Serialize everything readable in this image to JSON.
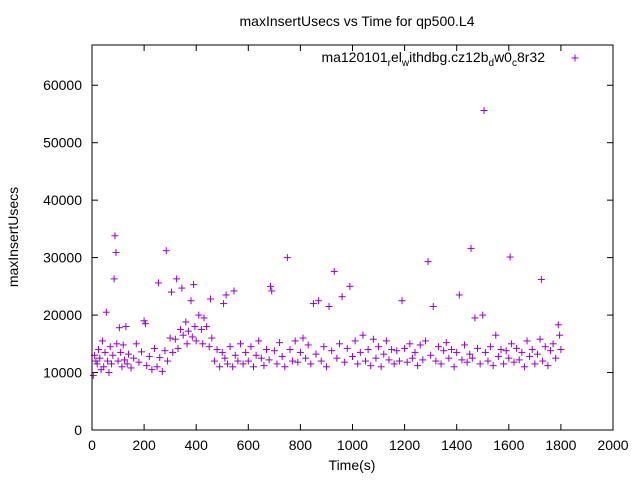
{
  "chart_data": {
    "type": "scatter",
    "title": "maxInsertUsecs vs Time for qp500.L4",
    "xlabel": "Time(s)",
    "ylabel": "maxInsertUsecs",
    "xlim": [
      0,
      2000
    ],
    "ylim": [
      0,
      67000
    ],
    "xticks": [
      0,
      200,
      400,
      600,
      800,
      1000,
      1200,
      1400,
      1600,
      1800,
      2000
    ],
    "yticks": [
      0,
      10000,
      20000,
      30000,
      40000,
      50000,
      60000
    ],
    "grid": false,
    "legend": "top-right",
    "marker": "plus",
    "color": "#9400d3",
    "series": [
      {
        "name": "ma120101_rel_withdbg.cz12b_dw0_c8r32",
        "name_parts": {
          "p1": "ma120101",
          "s1": "r",
          "p2": "el",
          "s2": "w",
          "p3": "ithdbg.cz12b",
          "s3": "d",
          "p4": "w0",
          "s4": "c",
          "p5": "8r32"
        },
        "points": [
          [
            5,
            9500
          ],
          [
            10,
            13000
          ],
          [
            15,
            12000
          ],
          [
            20,
            11500
          ],
          [
            25,
            14000
          ],
          [
            30,
            12500
          ],
          [
            35,
            10500
          ],
          [
            40,
            15500
          ],
          [
            45,
            11000
          ],
          [
            50,
            13500
          ],
          [
            55,
            20500
          ],
          [
            60,
            12000
          ],
          [
            65,
            10000
          ],
          [
            70,
            14500
          ],
          [
            75,
            11500
          ],
          [
            80,
            13000
          ],
          [
            85,
            26300
          ],
          [
            88,
            33800
          ],
          [
            92,
            30900
          ],
          [
            95,
            15000
          ],
          [
            100,
            12000
          ],
          [
            105,
            17800
          ],
          [
            110,
            13500
          ],
          [
            115,
            11000
          ],
          [
            120,
            14800
          ],
          [
            125,
            12200
          ],
          [
            130,
            18000
          ],
          [
            135,
            11500
          ],
          [
            140,
            13200
          ],
          [
            150,
            10800
          ],
          [
            160,
            12500
          ],
          [
            170,
            15000
          ],
          [
            180,
            11800
          ],
          [
            190,
            13600
          ],
          [
            200,
            19000
          ],
          [
            205,
            18500
          ],
          [
            210,
            11200
          ],
          [
            220,
            12800
          ],
          [
            230,
            10500
          ],
          [
            240,
            14200
          ],
          [
            250,
            11000
          ],
          [
            255,
            25600
          ],
          [
            260,
            12600
          ],
          [
            270,
            10200
          ],
          [
            280,
            13800
          ],
          [
            285,
            31200
          ],
          [
            290,
            12000
          ],
          [
            300,
            16000
          ],
          [
            305,
            24000
          ],
          [
            310,
            13500
          ],
          [
            320,
            15800
          ],
          [
            325,
            26300
          ],
          [
            330,
            14200
          ],
          [
            340,
            17500
          ],
          [
            345,
            24700
          ],
          [
            350,
            16500
          ],
          [
            360,
            18800
          ],
          [
            365,
            15000
          ],
          [
            370,
            17200
          ],
          [
            380,
            22500
          ],
          [
            385,
            16200
          ],
          [
            390,
            25300
          ],
          [
            395,
            18000
          ],
          [
            400,
            15500
          ],
          [
            410,
            20000
          ],
          [
            420,
            17500
          ],
          [
            425,
            15000
          ],
          [
            430,
            19500
          ],
          [
            440,
            18000
          ],
          [
            450,
            14500
          ],
          [
            455,
            22800
          ],
          [
            460,
            16000
          ],
          [
            470,
            12000
          ],
          [
            480,
            14000
          ],
          [
            490,
            11000
          ],
          [
            500,
            13500
          ],
          [
            505,
            22000
          ],
          [
            510,
            12500
          ],
          [
            515,
            23500
          ],
          [
            520,
            11500
          ],
          [
            530,
            14500
          ],
          [
            540,
            11000
          ],
          [
            545,
            24200
          ],
          [
            550,
            13000
          ],
          [
            560,
            12000
          ],
          [
            570,
            15000
          ],
          [
            580,
            11500
          ],
          [
            590,
            13500
          ],
          [
            600,
            12000
          ],
          [
            610,
            14500
          ],
          [
            620,
            11000
          ],
          [
            630,
            13000
          ],
          [
            640,
            15500
          ],
          [
            650,
            12500
          ],
          [
            660,
            11200
          ],
          [
            670,
            14000
          ],
          [
            680,
            12200
          ],
          [
            685,
            25000
          ],
          [
            690,
            24200
          ],
          [
            700,
            13800
          ],
          [
            710,
            11500
          ],
          [
            720,
            15200
          ],
          [
            730,
            12800
          ],
          [
            740,
            11000
          ],
          [
            750,
            30000
          ],
          [
            760,
            14000
          ],
          [
            770,
            12000
          ],
          [
            780,
            15500
          ],
          [
            790,
            11800
          ],
          [
            800,
            13500
          ],
          [
            810,
            16000
          ],
          [
            820,
            12500
          ],
          [
            830,
            14800
          ],
          [
            840,
            11500
          ],
          [
            850,
            22000
          ],
          [
            860,
            13200
          ],
          [
            870,
            22500
          ],
          [
            880,
            12000
          ],
          [
            890,
            14500
          ],
          [
            900,
            11000
          ],
          [
            910,
            21500
          ],
          [
            920,
            13800
          ],
          [
            930,
            27600
          ],
          [
            940,
            12500
          ],
          [
            950,
            15000
          ],
          [
            960,
            23200
          ],
          [
            970,
            11800
          ],
          [
            980,
            14200
          ],
          [
            990,
            25000
          ],
          [
            1000,
            12800
          ],
          [
            1010,
            15500
          ],
          [
            1020,
            11500
          ],
          [
            1030,
            13500
          ],
          [
            1040,
            16500
          ],
          [
            1050,
            12000
          ],
          [
            1060,
            14000
          ],
          [
            1070,
            11200
          ],
          [
            1080,
            15800
          ],
          [
            1090,
            12500
          ],
          [
            1100,
            14500
          ],
          [
            1110,
            11000
          ],
          [
            1120,
            13200
          ],
          [
            1130,
            15500
          ],
          [
            1140,
            12200
          ],
          [
            1150,
            14000
          ],
          [
            1160,
            11500
          ],
          [
            1170,
            13800
          ],
          [
            1180,
            12000
          ],
          [
            1190,
            22500
          ],
          [
            1200,
            14200
          ],
          [
            1210,
            11800
          ],
          [
            1220,
            15000
          ],
          [
            1230,
            12500
          ],
          [
            1240,
            13500
          ],
          [
            1250,
            11200
          ],
          [
            1260,
            14800
          ],
          [
            1270,
            12200
          ],
          [
            1280,
            15500
          ],
          [
            1290,
            29300
          ],
          [
            1300,
            13000
          ],
          [
            1310,
            21500
          ],
          [
            1320,
            12000
          ],
          [
            1330,
            14500
          ],
          [
            1340,
            11500
          ],
          [
            1350,
            13800
          ],
          [
            1360,
            15200
          ],
          [
            1370,
            12500
          ],
          [
            1380,
            14000
          ],
          [
            1390,
            11000
          ],
          [
            1400,
            13500
          ],
          [
            1410,
            23500
          ],
          [
            1420,
            12200
          ],
          [
            1430,
            14800
          ],
          [
            1440,
            11800
          ],
          [
            1450,
            13200
          ],
          [
            1455,
            31600
          ],
          [
            1460,
            12500
          ],
          [
            1470,
            19500
          ],
          [
            1480,
            14200
          ],
          [
            1490,
            11500
          ],
          [
            1500,
            20000
          ],
          [
            1505,
            55600
          ],
          [
            1510,
            13500
          ],
          [
            1520,
            12000
          ],
          [
            1530,
            14500
          ],
          [
            1540,
            11200
          ],
          [
            1550,
            16500
          ],
          [
            1560,
            12800
          ],
          [
            1570,
            14000
          ],
          [
            1580,
            11500
          ],
          [
            1590,
            13800
          ],
          [
            1600,
            12500
          ],
          [
            1605,
            30100
          ],
          [
            1610,
            15000
          ],
          [
            1620,
            11800
          ],
          [
            1630,
            14200
          ],
          [
            1640,
            12200
          ],
          [
            1650,
            13500
          ],
          [
            1660,
            11000
          ],
          [
            1670,
            15500
          ],
          [
            1680,
            12800
          ],
          [
            1690,
            14000
          ],
          [
            1700,
            11500
          ],
          [
            1710,
            13200
          ],
          [
            1720,
            15800
          ],
          [
            1725,
            26200
          ],
          [
            1730,
            12000
          ],
          [
            1740,
            14500
          ],
          [
            1750,
            11200
          ],
          [
            1760,
            13800
          ],
          [
            1770,
            15000
          ],
          [
            1780,
            12500
          ],
          [
            1790,
            18300
          ],
          [
            1795,
            16500
          ],
          [
            1800,
            14000
          ]
        ]
      }
    ]
  }
}
